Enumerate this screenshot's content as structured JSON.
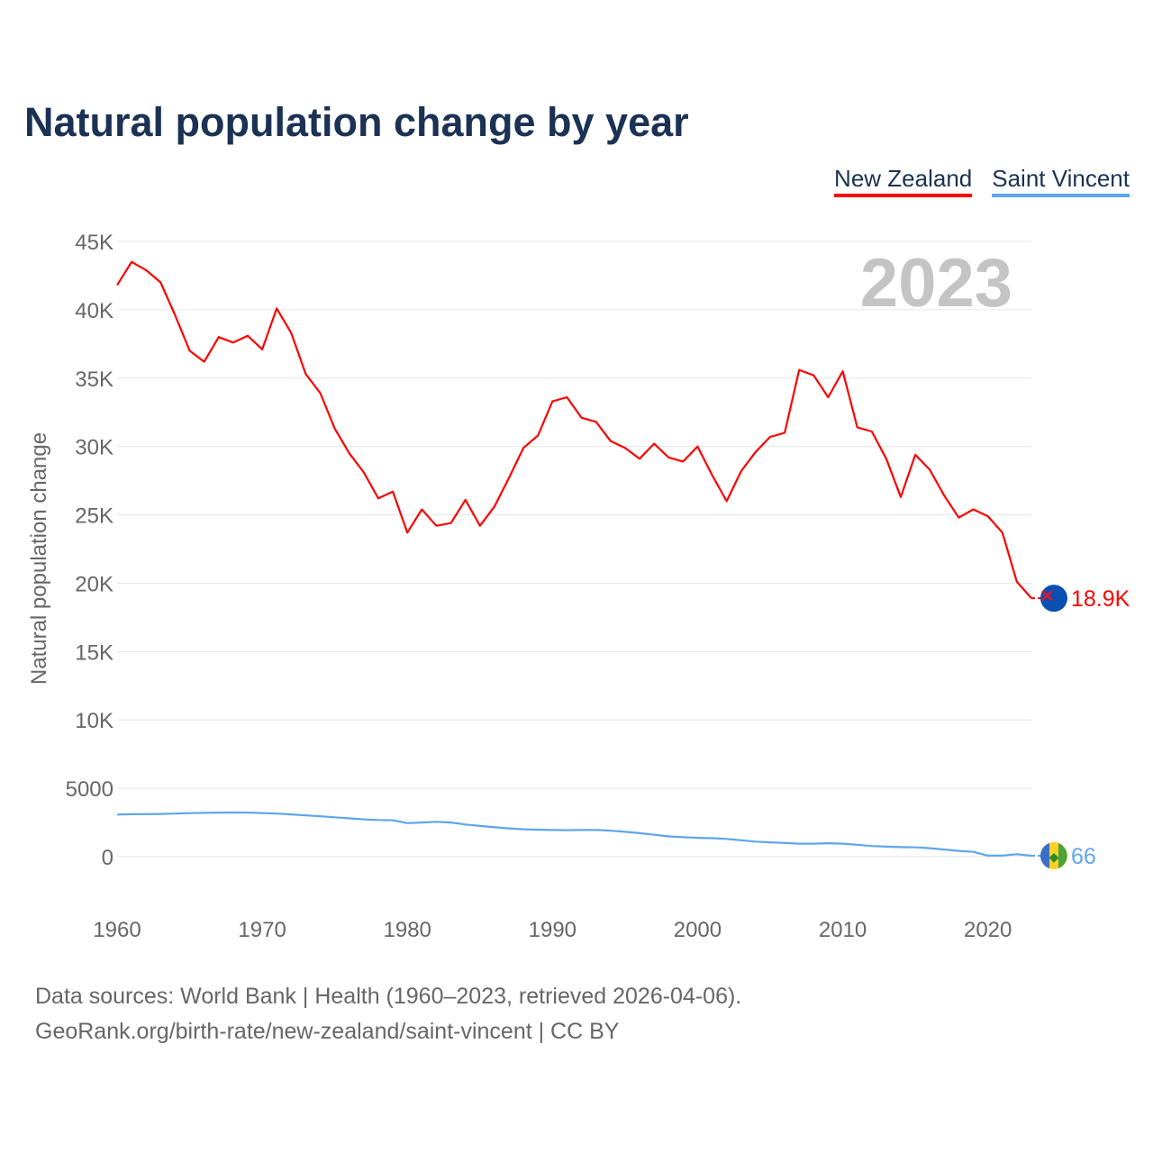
{
  "title": "Natural population change by year",
  "source_lines": [
    "Data sources: World Bank | Health (1960–2023, retrieved 2026-04-06).",
    "GeoRank.org/birth-rate/new-zealand/saint-vincent | CC BY"
  ],
  "chart_data": {
    "type": "line",
    "title": "Natural population change by year",
    "ylabel": "Natural population change",
    "xlabel": "",
    "year_label": "2023",
    "xlim": [
      1960,
      2023
    ],
    "ylim": [
      -3000,
      45000
    ],
    "x_ticks": [
      1960,
      1970,
      1980,
      1990,
      2000,
      2010,
      2020
    ],
    "y_ticks": [
      0,
      5000,
      10000,
      15000,
      20000,
      25000,
      30000,
      35000,
      40000,
      45000
    ],
    "y_tick_labels": [
      "0",
      "5000",
      "10K",
      "15K",
      "20K",
      "25K",
      "30K",
      "35K",
      "40K",
      "45K"
    ],
    "grid": true,
    "legend_position": "top-right",
    "series": [
      {
        "name": "New Zealand",
        "color": "#ff0000",
        "end_label": "18.9K",
        "flag": "new-zealand-flag-icon",
        "values": [
          41800,
          43500,
          42900,
          42000,
          39600,
          37000,
          36200,
          38000,
          37600,
          38100,
          37100,
          40100,
          38300,
          35300,
          33900,
          31300,
          29500,
          28100,
          26200,
          26700,
          23700,
          25400,
          24200,
          24400,
          26100,
          24200,
          25600,
          27700,
          29900,
          30800,
          33300,
          33600,
          32100,
          31800,
          30400,
          29900,
          29100,
          30200,
          29200,
          28900,
          30000,
          27900,
          26000,
          28200,
          29600,
          30700,
          31000,
          35600,
          35200,
          33600,
          35500,
          31400,
          31100,
          29100,
          26300,
          29400,
          28300,
          26400,
          24800,
          25400,
          24900,
          23700,
          20100,
          18900
        ]
      },
      {
        "name": "Saint Vincent",
        "color": "#5ea6ec",
        "end_label": "66",
        "flag": "saint-vincent-flag-icon",
        "values": [
          3080,
          3100,
          3110,
          3120,
          3150,
          3180,
          3200,
          3220,
          3230,
          3220,
          3190,
          3150,
          3090,
          3020,
          2950,
          2880,
          2800,
          2730,
          2680,
          2660,
          2450,
          2500,
          2550,
          2500,
          2350,
          2250,
          2150,
          2070,
          2000,
          1970,
          1950,
          1940,
          1960,
          1950,
          1900,
          1820,
          1720,
          1600,
          1480,
          1420,
          1380,
          1350,
          1290,
          1200,
          1100,
          1050,
          1000,
          950,
          950,
          980,
          950,
          870,
          780,
          730,
          700,
          680,
          620,
          520,
          420,
          350,
          70,
          80,
          180,
          66
        ]
      }
    ]
  }
}
